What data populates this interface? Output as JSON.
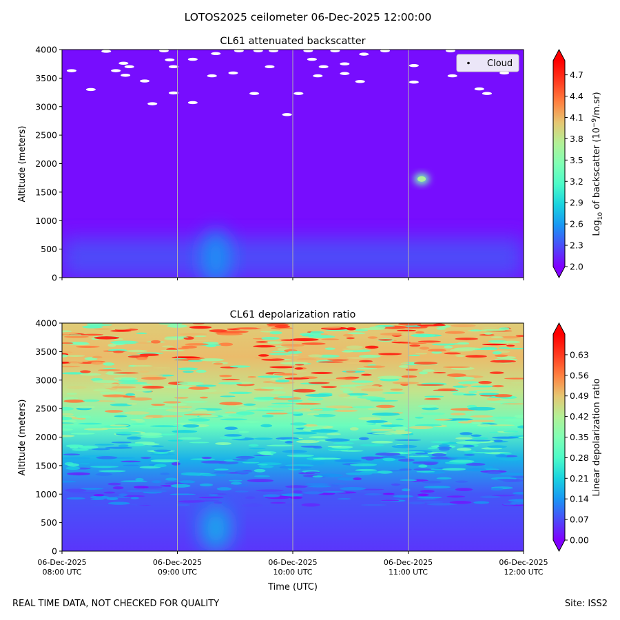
{
  "suptitle": "LOTOS2025 ceilometer 06-Dec-2025 12:00:00",
  "footer_left": "REAL TIME DATA, NOT CHECKED FOR QUALITY",
  "footer_right": "Site: ISS2",
  "colormap": [
    "#8000ff",
    "#4b4cf9",
    "#1996f3",
    "#19d3df",
    "#4cfbc8",
    "#80ffb4",
    "#b3f096",
    "#e6c672",
    "#ff8040",
    "#ff3a1f",
    "#ff0000"
  ],
  "cloud_marker_color": "#ffffff",
  "chart_data": [
    {
      "type": "heatmap",
      "title": "CL61 attenuated backscatter",
      "ylabel": "Altitude (meters)",
      "xlabel": "",
      "ylim": [
        0,
        4000
      ],
      "yticks": [
        "0",
        "500",
        "1000",
        "1500",
        "2000",
        "2500",
        "3000",
        "3500",
        "4000"
      ],
      "xticks": [
        {
          "date": "06-Dec-2025",
          "time": "08:00 UTC"
        },
        {
          "date": "06-Dec-2025",
          "time": "09:00 UTC"
        },
        {
          "date": "06-Dec-2025",
          "time": "10:00 UTC"
        },
        {
          "date": "06-Dec-2025",
          "time": "11:00 UTC"
        },
        {
          "date": "06-Dec-2025",
          "time": "12:00 UTC"
        }
      ],
      "grid": "vertical",
      "legend": {
        "placement": "top-right",
        "entries": [
          "Cloud"
        ]
      },
      "colorbar": {
        "label_prefix": "Log",
        "label_sub": "10",
        "label_mid": " of backscatter (10",
        "label_sup": "−9",
        "label_suffix": "/m.sr)",
        "ticks": [
          "2.0",
          "2.3",
          "2.6",
          "2.9",
          "3.2",
          "3.5",
          "3.8",
          "4.1",
          "4.4",
          "4.7"
        ],
        "range": [
          2.0,
          4.9
        ]
      },
      "background_level": 2.05,
      "features": [
        {
          "time": "11:07 UTC",
          "altitude": 1730,
          "value": 3.4
        },
        {
          "time": "09:20 UTC",
          "altitude": 350,
          "value": 2.55
        }
      ],
      "cloud_marks": [
        {
          "time": "08:05 UTC",
          "altitude": 3630
        },
        {
          "time": "08:15 UTC",
          "altitude": 3300
        },
        {
          "time": "08:23 UTC",
          "altitude": 3970
        },
        {
          "time": "08:28 UTC",
          "altitude": 3630
        },
        {
          "time": "08:32 UTC",
          "altitude": 3760
        },
        {
          "time": "08:35 UTC",
          "altitude": 3700
        },
        {
          "time": "08:33 UTC",
          "altitude": 3550
        },
        {
          "time": "08:43 UTC",
          "altitude": 3450
        },
        {
          "time": "08:47 UTC",
          "altitude": 3050
        },
        {
          "time": "08:53 UTC",
          "altitude": 3980
        },
        {
          "time": "08:56 UTC",
          "altitude": 3820
        },
        {
          "time": "08:58 UTC",
          "altitude": 3700
        },
        {
          "time": "08:58 UTC",
          "altitude": 3240
        },
        {
          "time": "09:08 UTC",
          "altitude": 3830
        },
        {
          "time": "09:08 UTC",
          "altitude": 3070
        },
        {
          "time": "09:20 UTC",
          "altitude": 3930
        },
        {
          "time": "09:18 UTC",
          "altitude": 3540
        },
        {
          "time": "09:29 UTC",
          "altitude": 3590
        },
        {
          "time": "09:32 UTC",
          "altitude": 3980
        },
        {
          "time": "09:40 UTC",
          "altitude": 3230
        },
        {
          "time": "09:42 UTC",
          "altitude": 3980
        },
        {
          "time": "09:48 UTC",
          "altitude": 3700
        },
        {
          "time": "09:50 UTC",
          "altitude": 3980
        },
        {
          "time": "09:57 UTC",
          "altitude": 2860
        },
        {
          "time": "10:03 UTC",
          "altitude": 3230
        },
        {
          "time": "10:08 UTC",
          "altitude": 3980
        },
        {
          "time": "10:10 UTC",
          "altitude": 3830
        },
        {
          "time": "10:13 UTC",
          "altitude": 3540
        },
        {
          "time": "10:16 UTC",
          "altitude": 3700
        },
        {
          "time": "10:22 UTC",
          "altitude": 3980
        },
        {
          "time": "10:27 UTC",
          "altitude": 3750
        },
        {
          "time": "10:27 UTC",
          "altitude": 3580
        },
        {
          "time": "10:35 UTC",
          "altitude": 3440
        },
        {
          "time": "10:37 UTC",
          "altitude": 3920
        },
        {
          "time": "10:48 UTC",
          "altitude": 3980
        },
        {
          "time": "11:03 UTC",
          "altitude": 3720
        },
        {
          "time": "11:03 UTC",
          "altitude": 3430
        },
        {
          "time": "11:22 UTC",
          "altitude": 3980
        },
        {
          "time": "11:23 UTC",
          "altitude": 3540
        },
        {
          "time": "11:37 UTC",
          "altitude": 3310
        },
        {
          "time": "11:41 UTC",
          "altitude": 3230
        },
        {
          "time": "11:50 UTC",
          "altitude": 3590
        }
      ]
    },
    {
      "type": "heatmap",
      "title": "CL61 depolarization ratio",
      "ylabel": "Altitude (meters)",
      "xlabel": "Time (UTC)",
      "ylim": [
        0,
        4000
      ],
      "yticks": [
        "0",
        "500",
        "1000",
        "1500",
        "2000",
        "2500",
        "3000",
        "3500",
        "4000"
      ],
      "xticks": [
        {
          "date": "06-Dec-2025",
          "time": "08:00 UTC"
        },
        {
          "date": "06-Dec-2025",
          "time": "09:00 UTC"
        },
        {
          "date": "06-Dec-2025",
          "time": "10:00 UTC"
        },
        {
          "date": "06-Dec-2025",
          "time": "11:00 UTC"
        },
        {
          "date": "06-Dec-2025",
          "time": "12:00 UTC"
        }
      ],
      "grid": "vertical",
      "colorbar": {
        "label": "Linear depolarization ratio",
        "ticks": [
          "0.00",
          "0.07",
          "0.14",
          "0.21",
          "0.28",
          "0.35",
          "0.42",
          "0.49",
          "0.56",
          "0.63"
        ],
        "range": [
          0.0,
          0.7
        ]
      },
      "vertical_profile": [
        {
          "altitude": 0,
          "value": 0.05
        },
        {
          "altitude": 1000,
          "value": 0.08
        },
        {
          "altitude": 1600,
          "value": 0.17
        },
        {
          "altitude": 2200,
          "value": 0.32
        },
        {
          "altitude": 2800,
          "value": 0.44
        },
        {
          "altitude": 3400,
          "value": 0.5
        },
        {
          "altitude": 4000,
          "value": 0.48
        }
      ],
      "features": [
        {
          "time": "09:20 UTC",
          "altitude": 400,
          "value": 0.16
        }
      ]
    }
  ]
}
